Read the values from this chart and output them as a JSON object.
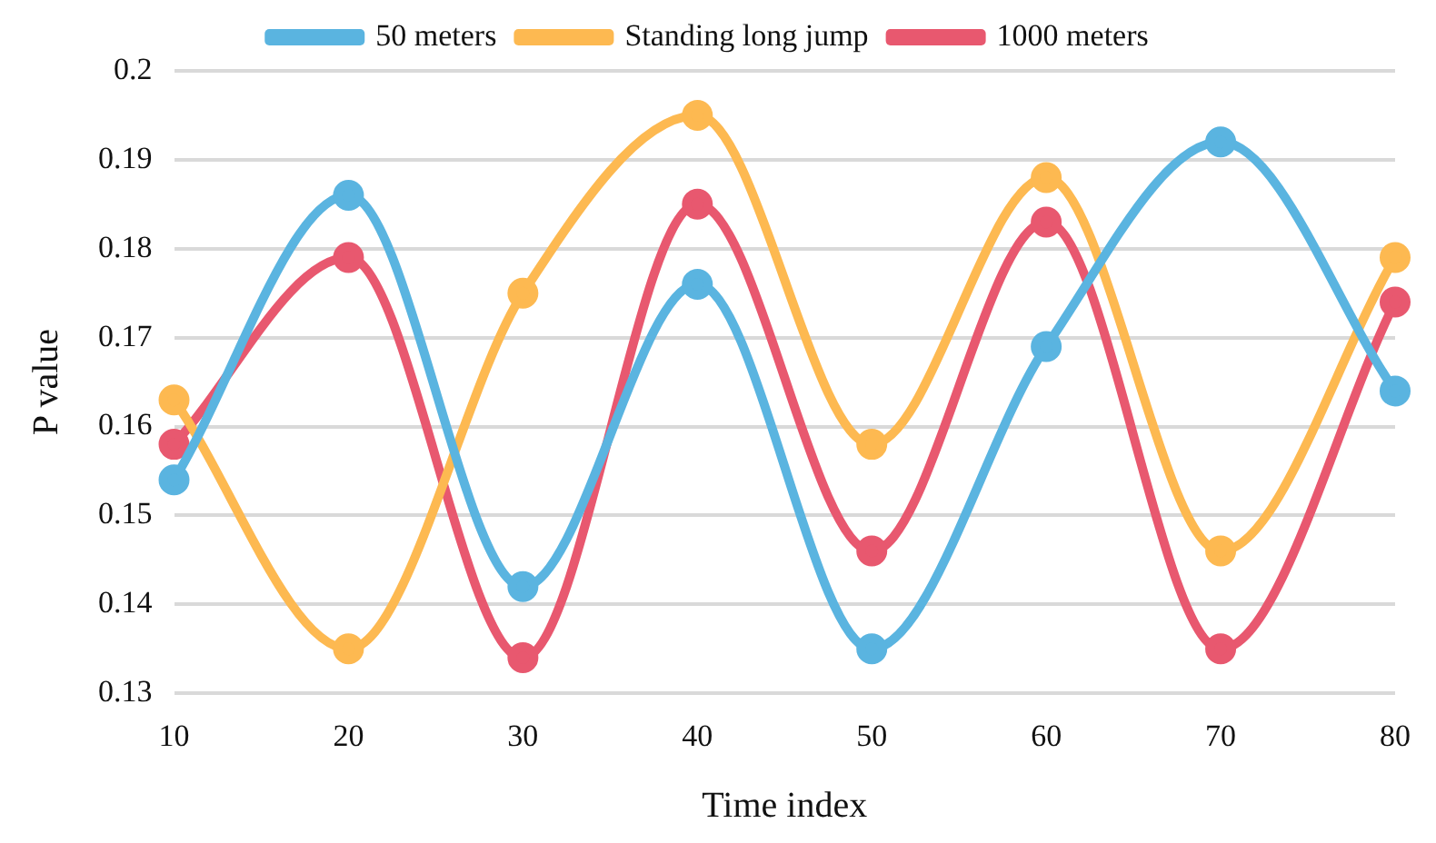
{
  "chart_data": {
    "type": "line",
    "xlabel": "Time index",
    "ylabel": "P value",
    "categories": [
      "10",
      "20",
      "30",
      "40",
      "50",
      "60",
      "70",
      "80"
    ],
    "series": [
      {
        "name": "50 meters",
        "color": "#5ab4e0",
        "values": [
          0.154,
          0.186,
          0.142,
          0.176,
          0.135,
          0.169,
          0.192,
          0.164
        ]
      },
      {
        "name": "Standing long jump",
        "color": "#fdb951",
        "values": [
          0.163,
          0.135,
          0.175,
          0.195,
          0.158,
          0.188,
          0.146,
          0.179
        ]
      },
      {
        "name": "1000 meters",
        "color": "#e8586f",
        "values": [
          0.158,
          0.179,
          0.134,
          0.185,
          0.146,
          0.183,
          0.135,
          0.174
        ]
      }
    ],
    "ylim": [
      0.13,
      0.2
    ],
    "yticks": [
      0.13,
      0.14,
      0.15,
      0.16,
      0.17,
      0.18,
      0.19,
      0.2
    ],
    "grid": "y",
    "legend": "top",
    "marker": "circle",
    "line_style": "solid"
  }
}
